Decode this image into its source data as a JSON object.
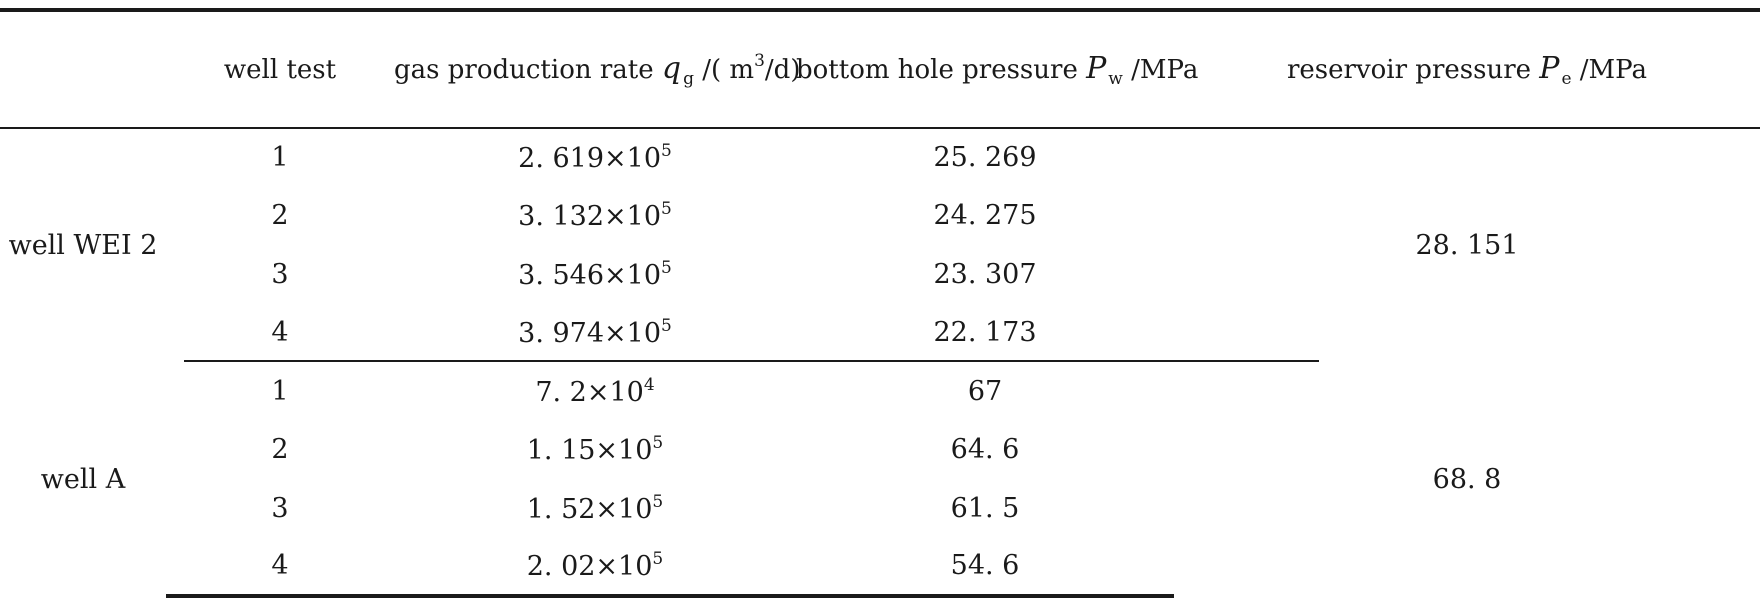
{
  "table": {
    "headers": {
      "group": "",
      "well_test": "well test",
      "gas_rate": {
        "prefix": "gas production rate ",
        "symbol": "q",
        "subscript": "g",
        "unit_pre": " /( m",
        "unit_sup": "3",
        "unit_post": "/d)"
      },
      "bottom_hole": {
        "prefix": "bottom hole pressure ",
        "symbol": "P",
        "subscript": "w",
        "unit": " /MPa"
      },
      "reservoir": {
        "prefix": "reservoir pressure ",
        "symbol": "P",
        "subscript": "e",
        "unit": " /MPa"
      }
    },
    "groups": [
      {
        "name": "well WEI 2",
        "reservoir_pressure": "28. 151",
        "rows": [
          {
            "test": "1",
            "rate_mantissa": "2. 619×10",
            "rate_exp": "5",
            "bhp": "25. 269"
          },
          {
            "test": "2",
            "rate_mantissa": "3. 132×10",
            "rate_exp": "5",
            "bhp": "24. 275"
          },
          {
            "test": "3",
            "rate_mantissa": "3. 546×10",
            "rate_exp": "5",
            "bhp": "23. 307"
          },
          {
            "test": "4",
            "rate_mantissa": "3. 974×10",
            "rate_exp": "5",
            "bhp": "22. 173"
          }
        ]
      },
      {
        "name": "well A",
        "reservoir_pressure": "68. 8",
        "rows": [
          {
            "test": "1",
            "rate_mantissa": "7. 2×10",
            "rate_exp": "4",
            "bhp": "67"
          },
          {
            "test": "2",
            "rate_mantissa": "1. 15×10",
            "rate_exp": "5",
            "bhp": "64. 6"
          },
          {
            "test": "3",
            "rate_mantissa": "1. 52×10",
            "rate_exp": "5",
            "bhp": "61. 5"
          },
          {
            "test": "4",
            "rate_mantissa": "2. 02×10",
            "rate_exp": "5",
            "bhp": "54. 6"
          }
        ]
      }
    ]
  }
}
